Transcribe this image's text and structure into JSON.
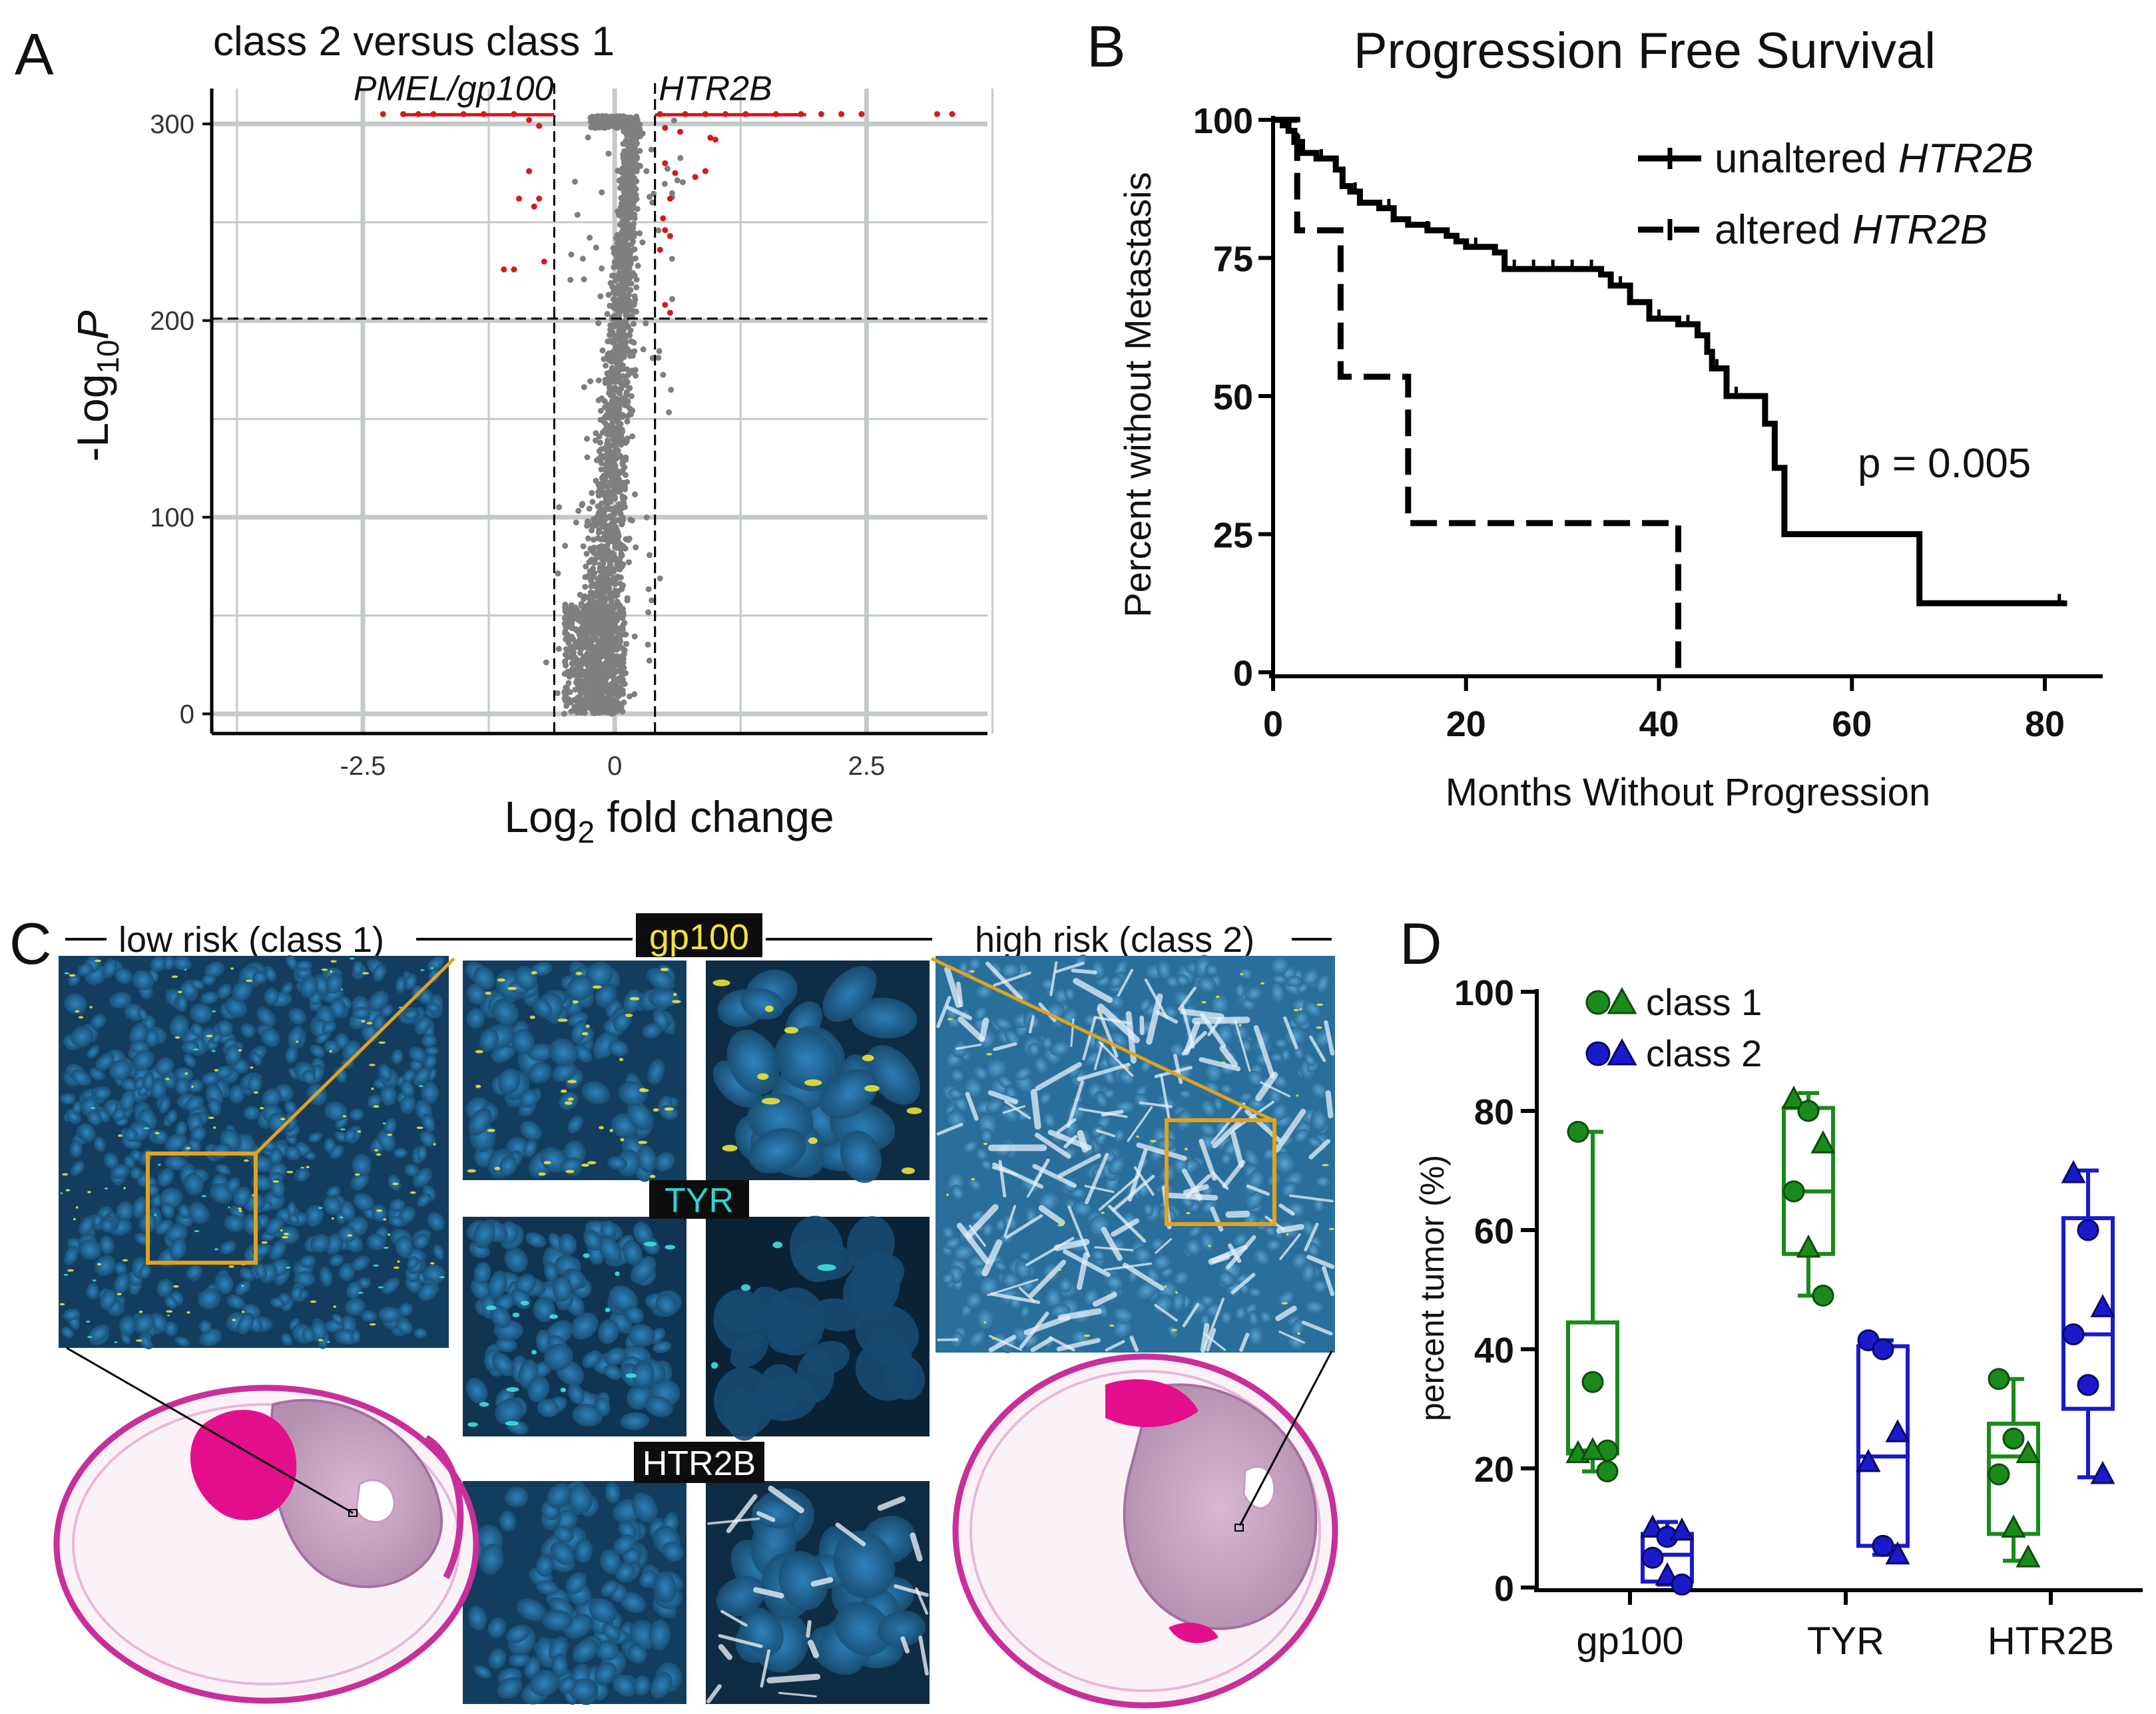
{
  "panel_labels": {
    "a": "A",
    "b": "B",
    "c": "C",
    "d": "D"
  },
  "colors": {
    "sig": "#d7191c",
    "gray": "#7f7f7f",
    "green": "#1a8a1a",
    "blue": "#1a1acc",
    "grid": "#c4c9c9",
    "gold": "#e3a21a"
  },
  "chart_data": [
    {
      "id": "volcano",
      "type": "scatter",
      "title": "class 2 versus class 1",
      "xlabel": "Log₂ fold change",
      "xlabel_main": "Log",
      "xlabel_sub": "2",
      "xlabel_rest": " fold change",
      "ylabel_main": "-Log",
      "ylabel_sub": "10",
      "ylabel_ital": "P",
      "xlim": [
        -4,
        3.7
      ],
      "ylim": [
        -10,
        318
      ],
      "xticks": [
        -2.5,
        0,
        2.5
      ],
      "xtick_labels": [
        "-2.5",
        "0",
        "2.5"
      ],
      "yticks": [
        0,
        100,
        200,
        300
      ],
      "ytick_labels": [
        "0",
        "100",
        "200",
        "300"
      ],
      "grid": true,
      "threshold_fc": [
        -0.6,
        0.4
      ],
      "threshold_p": 201,
      "cap_p": 304,
      "annotations": [
        {
          "text": "PMEL/gp100",
          "x": -1.6,
          "y": 312,
          "line_from": -2.1,
          "line_to": -0.6
        },
        {
          "text": "HTR2B",
          "x": 1.0,
          "y": 312,
          "line_from": 0.4,
          "line_to": 1.9
        }
      ],
      "significant_points": [
        [
          -2.3,
          305
        ],
        [
          -2.1,
          305
        ],
        [
          -1.95,
          305
        ],
        [
          -1.8,
          305
        ],
        [
          -1.5,
          305
        ],
        [
          -1.3,
          305
        ],
        [
          -1.0,
          305
        ],
        [
          -0.85,
          302
        ],
        [
          -0.75,
          299
        ],
        [
          -0.85,
          276
        ],
        [
          -0.95,
          262
        ],
        [
          -0.75,
          262
        ],
        [
          -0.8,
          258
        ],
        [
          -1.1,
          226
        ],
        [
          -1.0,
          226
        ],
        [
          -0.7,
          230
        ],
        [
          0.45,
          305
        ],
        [
          0.7,
          305
        ],
        [
          0.9,
          305
        ],
        [
          1.1,
          305
        ],
        [
          1.3,
          305
        ],
        [
          1.6,
          305
        ],
        [
          1.85,
          305
        ],
        [
          2.05,
          305
        ],
        [
          2.25,
          305
        ],
        [
          2.45,
          305
        ],
        [
          3.2,
          305
        ],
        [
          3.35,
          305
        ],
        [
          0.5,
          298
        ],
        [
          0.65,
          296
        ],
        [
          0.95,
          293
        ],
        [
          1.0,
          292
        ],
        [
          0.5,
          280
        ],
        [
          0.6,
          275
        ],
        [
          0.8,
          273
        ],
        [
          0.9,
          276
        ],
        [
          0.55,
          262
        ],
        [
          0.48,
          252
        ],
        [
          0.5,
          246
        ],
        [
          0.55,
          243
        ],
        [
          0.45,
          236
        ],
        [
          0.5,
          208
        ],
        [
          0.55,
          204
        ]
      ]
    },
    {
      "id": "km",
      "type": "line",
      "title": "Progression Free Survival",
      "xlabel": "Months Without Progression",
      "ylabel": "Percent without Metastasis",
      "xlim": [
        0,
        86
      ],
      "ylim": [
        0,
        100
      ],
      "xticks": [
        0,
        20,
        40,
        60,
        80
      ],
      "xtick_labels": [
        "0",
        "20",
        "40",
        "60",
        "80"
      ],
      "yticks": [
        0,
        25,
        50,
        75,
        100
      ],
      "ytick_labels": [
        "0",
        "25",
        "50",
        "75",
        "100"
      ],
      "pvalue": "p = 0.005",
      "legend_position": "top-right",
      "series": [
        {
          "name_plain": "unaltered ",
          "name_ital": "HTR2B",
          "style": "solid",
          "x": [
            0,
            1,
            1.6,
            2.2,
            3,
            4.5,
            6.5,
            7.2,
            8,
            9,
            11,
            12.5,
            14,
            16,
            18,
            19,
            20,
            23,
            24,
            34,
            35,
            37,
            39,
            42,
            44,
            45,
            45.5,
            47,
            50,
            51,
            52,
            53,
            66,
            67,
            82
          ],
          "y": [
            100,
            99,
            98,
            96,
            94,
            93,
            91,
            88,
            87,
            85,
            84,
            82,
            81,
            80,
            79,
            78,
            77,
            76,
            73,
            72,
            70,
            67,
            64,
            63,
            61,
            58,
            55,
            50,
            50,
            45,
            37,
            25,
            25,
            12.5,
            13
          ]
        },
        {
          "name_plain": "altered ",
          "name_ital": "HTR2B",
          "style": "dashed",
          "x": [
            0,
            2,
            2.5,
            6.5,
            7,
            13.5,
            14,
            41,
            42
          ],
          "y": [
            100,
            100,
            80,
            80,
            53.5,
            53.5,
            27,
            27,
            0
          ]
        }
      ]
    },
    {
      "id": "box",
      "type": "box",
      "ylabel": "percent tumor (%)",
      "ylim": [
        0,
        100
      ],
      "yticks": [
        0,
        20,
        40,
        60,
        80,
        100
      ],
      "ytick_labels": [
        "0",
        "20",
        "40",
        "60",
        "80",
        "100"
      ],
      "categories": [
        "gp100",
        "TYR",
        "HTR2B"
      ],
      "legend_position": "top-left",
      "legend": [
        {
          "label": "class 1",
          "color": "green"
        },
        {
          "label": "class 2",
          "color": "blue"
        }
      ],
      "boxes": [
        {
          "group": "gp100",
          "class": "class 1",
          "min": 19.5,
          "q1": 22.5,
          "median": 23,
          "q3": 44.5,
          "max": 76.5,
          "points": [
            [
              76.5,
              "c"
            ],
            [
              34.5,
              "c"
            ],
            [
              23,
              "c"
            ],
            [
              22.5,
              "t"
            ],
            [
              23,
              "t"
            ],
            [
              19.5,
              "c"
            ]
          ]
        },
        {
          "group": "gp100",
          "class": "class 2",
          "min": 0.5,
          "q1": 1,
          "median": 5.5,
          "q3": 9,
          "max": 11,
          "points": [
            [
              10,
              "t"
            ],
            [
              8.5,
              "c"
            ],
            [
              9.5,
              "t"
            ],
            [
              5,
              "c"
            ],
            [
              2,
              "t"
            ],
            [
              0.5,
              "c"
            ]
          ]
        },
        {
          "group": "TYR",
          "class": "class 1",
          "min": 49,
          "q1": 56,
          "median": 66.5,
          "q3": 80.5,
          "max": 83,
          "points": [
            [
              82,
              "t"
            ],
            [
              80,
              "c"
            ],
            [
              74.5,
              "t"
            ],
            [
              66.5,
              "c"
            ],
            [
              57,
              "t"
            ],
            [
              49,
              "c"
            ]
          ]
        },
        {
          "group": "TYR",
          "class": "class 2",
          "min": 5.5,
          "q1": 7,
          "median": 22,
          "q3": 40.5,
          "max": 41.5,
          "points": [
            [
              41.5,
              "c"
            ],
            [
              40,
              "c"
            ],
            [
              26,
              "t"
            ],
            [
              21,
              "t"
            ],
            [
              7,
              "c"
            ],
            [
              5.5,
              "t"
            ]
          ]
        },
        {
          "group": "HTR2B",
          "class": "class 1",
          "min": 4.5,
          "q1": 9,
          "median": 22,
          "q3": 27.5,
          "max": 35,
          "points": [
            [
              35,
              "c"
            ],
            [
              25,
              "c"
            ],
            [
              22.5,
              "t"
            ],
            [
              19,
              "c"
            ],
            [
              10,
              "t"
            ],
            [
              5,
              "t"
            ]
          ]
        },
        {
          "group": "HTR2B",
          "class": "class 2",
          "min": 18.5,
          "q1": 30,
          "median": 42.5,
          "q3": 62,
          "max": 70,
          "points": [
            [
              69.5,
              "t"
            ],
            [
              60,
              "c"
            ],
            [
              47,
              "t"
            ],
            [
              42.5,
              "c"
            ],
            [
              34,
              "c"
            ],
            [
              19,
              "t"
            ]
          ]
        }
      ]
    }
  ],
  "panel_c": {
    "low_risk_label": "low risk (class 1)",
    "high_risk_label": "high risk (class 2)",
    "markers": [
      "gp100",
      "TYR",
      "HTR2B"
    ]
  }
}
